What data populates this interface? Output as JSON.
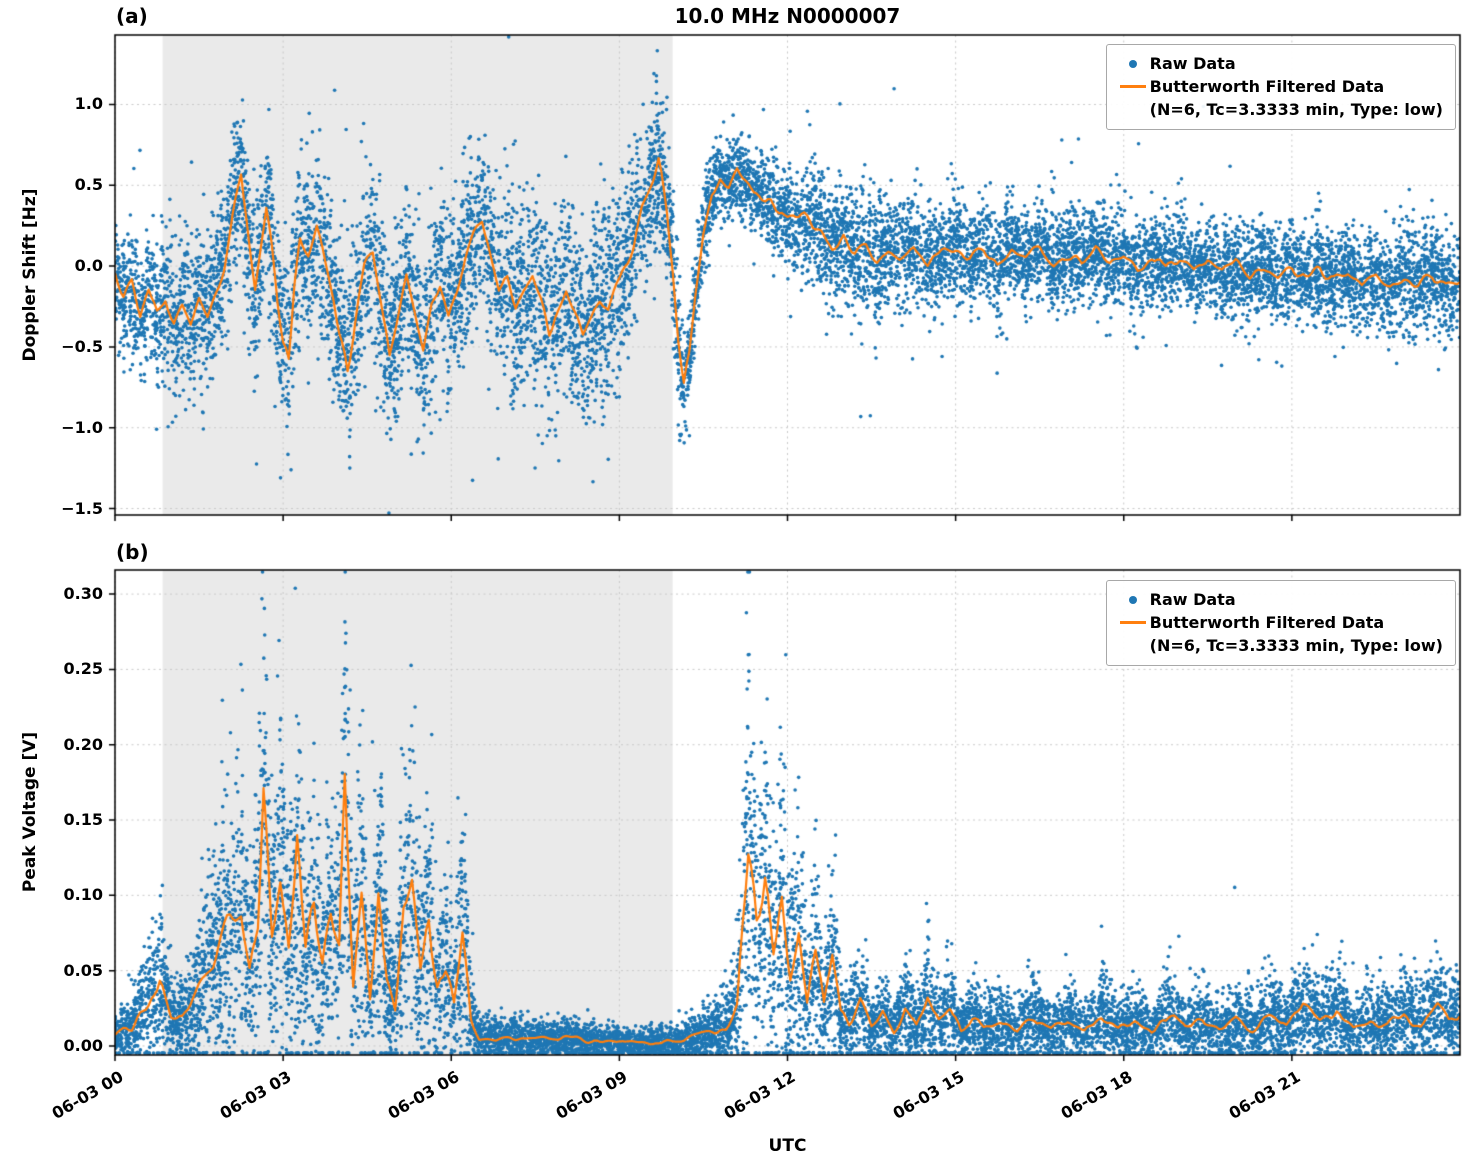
{
  "figure": {
    "title": "10.0 MHz N0000007",
    "xlabel": "UTC",
    "panels": [
      {
        "tag": "(a)",
        "ylabel": "Doppler Shift [Hz]"
      },
      {
        "tag": "(b)",
        "ylabel": "Peak Voltage [V]"
      }
    ],
    "legend": {
      "raw_label": "Raw Data",
      "filtered_label": "Butterworth Filtered Data",
      "filtered_sublabel": "(N=6, Tc=3.3333 min, Type: low)"
    },
    "colors": {
      "raw": "#1f77b4",
      "filtered": "#ff7f0e",
      "shade": "#d9d9d9",
      "grid": "#c9c9c9",
      "axis": "#000000"
    }
  },
  "chart_data": [
    {
      "type": "scatter",
      "title": "10.0 MHz N0000007",
      "ylabel": "Doppler Shift [Hz]",
      "xlabel": "UTC",
      "xlim": [
        0,
        24
      ],
      "ylim": [
        -1.54,
        1.43
      ],
      "yticks": [
        -1.5,
        -1.0,
        -0.5,
        0.0,
        0.5,
        1.0
      ],
      "ytick_labels": [
        "−1.5",
        "−1.0",
        "−0.5",
        "0.0",
        "0.5",
        "1.0"
      ],
      "xticks": [
        0,
        3,
        6,
        9,
        12,
        15,
        18,
        21
      ],
      "xtick_labels": [
        "06-03 00",
        "06-03 03",
        "06-03 06",
        "06-03 09",
        "06-03 12",
        "06-03 15",
        "06-03 18",
        "06-03 21"
      ],
      "shaded_span": [
        0.85,
        9.95
      ],
      "legend": [
        "Raw Data",
        "Butterworth Filtered Data (N=6, Tc=3.3333 min, Type: low)"
      ],
      "seed": 20230603,
      "points_per_hour": 500,
      "outlier_prob": 0.03,
      "outlier_scale": 2.2,
      "jitter_base": 0.05,
      "jitter_factor": 0.05,
      "spread_base": 0,
      "spread_factor": 0,
      "scatter_spread": [
        [
          0,
          0.18
        ],
        [
          1,
          0.22
        ],
        [
          2,
          0.24
        ],
        [
          3,
          0.27
        ],
        [
          4,
          0.28
        ],
        [
          5,
          0.28
        ],
        [
          6,
          0.27
        ],
        [
          7,
          0.3
        ],
        [
          8,
          0.3
        ],
        [
          9,
          0.3
        ],
        [
          9.8,
          0.22
        ],
        [
          10.3,
          0.14
        ],
        [
          11,
          0.12
        ],
        [
          11.8,
          0.14
        ],
        [
          12.5,
          0.17
        ],
        [
          13.5,
          0.2
        ],
        [
          14.5,
          0.16
        ],
        [
          16,
          0.15
        ],
        [
          18,
          0.15
        ],
        [
          20,
          0.14
        ],
        [
          22,
          0.15
        ],
        [
          24,
          0.16
        ]
      ],
      "filtered_line": [
        [
          0.0,
          -0.05
        ],
        [
          0.15,
          -0.2
        ],
        [
          0.3,
          -0.1
        ],
        [
          0.45,
          -0.3
        ],
        [
          0.6,
          -0.15
        ],
        [
          0.75,
          -0.3
        ],
        [
          0.9,
          -0.2
        ],
        [
          1.05,
          -0.35
        ],
        [
          1.2,
          -0.25
        ],
        [
          1.35,
          -0.35
        ],
        [
          1.5,
          -0.2
        ],
        [
          1.65,
          -0.3
        ],
        [
          1.8,
          -0.15
        ],
        [
          1.95,
          0.0
        ],
        [
          2.1,
          0.3
        ],
        [
          2.25,
          0.58
        ],
        [
          2.4,
          0.1
        ],
        [
          2.5,
          -0.15
        ],
        [
          2.6,
          0.1
        ],
        [
          2.7,
          0.35
        ],
        [
          2.8,
          0.1
        ],
        [
          2.9,
          -0.2
        ],
        [
          3.0,
          -0.45
        ],
        [
          3.1,
          -0.55
        ],
        [
          3.2,
          -0.1
        ],
        [
          3.3,
          0.2
        ],
        [
          3.45,
          0.1
        ],
        [
          3.6,
          0.25
        ],
        [
          3.75,
          0.0
        ],
        [
          3.9,
          -0.2
        ],
        [
          4.0,
          -0.4
        ],
        [
          4.15,
          -0.62
        ],
        [
          4.3,
          -0.3
        ],
        [
          4.45,
          0.0
        ],
        [
          4.6,
          0.1
        ],
        [
          4.75,
          -0.2
        ],
        [
          4.9,
          -0.55
        ],
        [
          5.05,
          -0.3
        ],
        [
          5.2,
          -0.05
        ],
        [
          5.35,
          -0.3
        ],
        [
          5.5,
          -0.55
        ],
        [
          5.65,
          -0.25
        ],
        [
          5.8,
          -0.1
        ],
        [
          5.95,
          -0.3
        ],
        [
          6.1,
          -0.15
        ],
        [
          6.25,
          0.05
        ],
        [
          6.4,
          0.2
        ],
        [
          6.55,
          0.3
        ],
        [
          6.7,
          0.05
        ],
        [
          6.85,
          -0.15
        ],
        [
          7.0,
          -0.1
        ],
        [
          7.15,
          -0.25
        ],
        [
          7.3,
          -0.15
        ],
        [
          7.45,
          -0.05
        ],
        [
          7.6,
          -0.2
        ],
        [
          7.75,
          -0.4
        ],
        [
          7.9,
          -0.3
        ],
        [
          8.05,
          -0.15
        ],
        [
          8.2,
          -0.3
        ],
        [
          8.35,
          -0.45
        ],
        [
          8.5,
          -0.35
        ],
        [
          8.65,
          -0.2
        ],
        [
          8.8,
          -0.25
        ],
        [
          8.95,
          -0.1
        ],
        [
          9.1,
          0.0
        ],
        [
          9.25,
          0.1
        ],
        [
          9.4,
          0.35
        ],
        [
          9.55,
          0.5
        ],
        [
          9.7,
          0.65
        ],
        [
          9.85,
          0.35
        ],
        [
          9.95,
          0.0
        ],
        [
          10.05,
          -0.45
        ],
        [
          10.15,
          -0.75
        ],
        [
          10.25,
          -0.55
        ],
        [
          10.35,
          -0.2
        ],
        [
          10.5,
          0.2
        ],
        [
          10.65,
          0.45
        ],
        [
          10.8,
          0.55
        ],
        [
          10.95,
          0.5
        ],
        [
          11.1,
          0.6
        ],
        [
          11.25,
          0.52
        ],
        [
          11.4,
          0.45
        ],
        [
          11.55,
          0.42
        ],
        [
          11.7,
          0.38
        ],
        [
          11.85,
          0.32
        ],
        [
          12.0,
          0.3
        ],
        [
          12.2,
          0.28
        ],
        [
          12.4,
          0.3
        ],
        [
          12.6,
          0.22
        ],
        [
          12.8,
          0.12
        ],
        [
          13.0,
          0.18
        ],
        [
          13.2,
          0.08
        ],
        [
          13.4,
          0.12
        ],
        [
          13.6,
          0.04
        ],
        [
          13.8,
          0.1
        ],
        [
          14.0,
          0.06
        ],
        [
          14.25,
          0.12
        ],
        [
          14.5,
          0.02
        ],
        [
          14.75,
          0.08
        ],
        [
          15.0,
          0.12
        ],
        [
          15.25,
          0.04
        ],
        [
          15.5,
          0.1
        ],
        [
          15.75,
          0.0
        ],
        [
          16.0,
          0.1
        ],
        [
          16.25,
          0.05
        ],
        [
          16.5,
          0.12
        ],
        [
          16.75,
          0.02
        ],
        [
          17.0,
          0.08
        ],
        [
          17.25,
          0.03
        ],
        [
          17.5,
          0.1
        ],
        [
          17.75,
          0.02
        ],
        [
          18.0,
          0.07
        ],
        [
          18.25,
          -0.02
        ],
        [
          18.5,
          0.05
        ],
        [
          18.75,
          0.0
        ],
        [
          19.0,
          0.06
        ],
        [
          19.25,
          -0.03
        ],
        [
          19.5,
          0.03
        ],
        [
          19.75,
          -0.05
        ],
        [
          20.0,
          0.02
        ],
        [
          20.25,
          -0.06
        ],
        [
          20.5,
          0.0
        ],
        [
          20.75,
          -0.08
        ],
        [
          21.0,
          -0.02
        ],
        [
          21.25,
          -0.06
        ],
        [
          21.5,
          0.0
        ],
        [
          21.75,
          -0.1
        ],
        [
          22.0,
          -0.04
        ],
        [
          22.25,
          -0.12
        ],
        [
          22.5,
          -0.06
        ],
        [
          22.75,
          -0.14
        ],
        [
          23.0,
          -0.08
        ],
        [
          23.25,
          -0.12
        ],
        [
          23.5,
          -0.06
        ],
        [
          23.75,
          -0.12
        ],
        [
          24.0,
          -0.1
        ]
      ]
    },
    {
      "type": "scatter",
      "title": "10.0 MHz N0000007",
      "ylabel": "Peak Voltage [V]",
      "xlabel": "UTC",
      "xlim": [
        0,
        24
      ],
      "ylim": [
        -0.006,
        0.316
      ],
      "yticks": [
        0.0,
        0.05,
        0.1,
        0.15,
        0.2,
        0.25,
        0.3
      ],
      "ytick_labels": [
        "0.00",
        "0.05",
        "0.10",
        "0.15",
        "0.20",
        "0.25",
        "0.30"
      ],
      "xticks": [
        0,
        3,
        6,
        9,
        12,
        15,
        18,
        21
      ],
      "xtick_labels": [
        "06-03 00",
        "06-03 03",
        "06-03 06",
        "06-03 09",
        "06-03 12",
        "06-03 15",
        "06-03 18",
        "06-03 21"
      ],
      "shaded_span": [
        0.85,
        9.95
      ],
      "legend": [
        "Raw Data",
        "Butterworth Filtered Data (N=6, Tc=3.3333 min, Type: low)"
      ],
      "seed": 99202,
      "points_per_hour": 500,
      "outlier_prob": 0.03,
      "outlier_scale": 2.0,
      "jitter_base": 0.002,
      "jitter_factor": 0.2,
      "spread_base": 0.004,
      "spread_factor": 0.55,
      "scatter_spread": [],
      "filtered_line": [
        [
          0.0,
          0.008
        ],
        [
          0.3,
          0.012
        ],
        [
          0.6,
          0.03
        ],
        [
          0.8,
          0.045
        ],
        [
          1.0,
          0.02
        ],
        [
          1.2,
          0.018
        ],
        [
          1.45,
          0.035
        ],
        [
          1.7,
          0.055
        ],
        [
          1.9,
          0.065
        ],
        [
          2.1,
          0.08
        ],
        [
          2.25,
          0.09
        ],
        [
          2.4,
          0.05
        ],
        [
          2.55,
          0.08
        ],
        [
          2.65,
          0.16
        ],
        [
          2.8,
          0.07
        ],
        [
          2.95,
          0.11
        ],
        [
          3.1,
          0.06
        ],
        [
          3.25,
          0.13
        ],
        [
          3.4,
          0.06
        ],
        [
          3.55,
          0.09
        ],
        [
          3.7,
          0.05
        ],
        [
          3.85,
          0.08
        ],
        [
          4.0,
          0.06
        ],
        [
          4.1,
          0.17
        ],
        [
          4.25,
          0.04
        ],
        [
          4.4,
          0.1
        ],
        [
          4.55,
          0.03
        ],
        [
          4.7,
          0.1
        ],
        [
          4.85,
          0.05
        ],
        [
          5.0,
          0.025
        ],
        [
          5.15,
          0.09
        ],
        [
          5.3,
          0.1
        ],
        [
          5.45,
          0.05
        ],
        [
          5.6,
          0.08
        ],
        [
          5.75,
          0.04
        ],
        [
          5.9,
          0.055
        ],
        [
          6.05,
          0.03
        ],
        [
          6.2,
          0.085
        ],
        [
          6.35,
          0.02
        ],
        [
          6.5,
          0.006
        ],
        [
          6.8,
          0.004
        ],
        [
          7.2,
          0.005
        ],
        [
          7.6,
          0.004
        ],
        [
          8.0,
          0.005
        ],
        [
          8.4,
          0.004
        ],
        [
          8.8,
          0.003
        ],
        [
          9.2,
          0.002
        ],
        [
          9.6,
          0.002
        ],
        [
          10.0,
          0.003
        ],
        [
          10.3,
          0.005
        ],
        [
          10.6,
          0.008
        ],
        [
          10.9,
          0.012
        ],
        [
          11.1,
          0.025
        ],
        [
          11.3,
          0.13
        ],
        [
          11.45,
          0.08
        ],
        [
          11.6,
          0.105
        ],
        [
          11.75,
          0.06
        ],
        [
          11.9,
          0.09
        ],
        [
          12.05,
          0.05
        ],
        [
          12.2,
          0.08
        ],
        [
          12.35,
          0.03
        ],
        [
          12.5,
          0.065
        ],
        [
          12.65,
          0.025
        ],
        [
          12.8,
          0.06
        ],
        [
          12.95,
          0.02
        ],
        [
          13.1,
          0.015
        ],
        [
          13.3,
          0.03
        ],
        [
          13.5,
          0.012
        ],
        [
          13.7,
          0.022
        ],
        [
          13.9,
          0.01
        ],
        [
          14.1,
          0.025
        ],
        [
          14.3,
          0.012
        ],
        [
          14.5,
          0.03
        ],
        [
          14.7,
          0.015
        ],
        [
          14.9,
          0.025
        ],
        [
          15.1,
          0.01
        ],
        [
          15.3,
          0.02
        ],
        [
          15.5,
          0.012
        ],
        [
          15.8,
          0.016
        ],
        [
          16.1,
          0.01
        ],
        [
          16.4,
          0.02
        ],
        [
          16.7,
          0.01
        ],
        [
          17.0,
          0.016
        ],
        [
          17.3,
          0.01
        ],
        [
          17.6,
          0.02
        ],
        [
          17.9,
          0.012
        ],
        [
          18.2,
          0.016
        ],
        [
          18.5,
          0.01
        ],
        [
          18.8,
          0.02
        ],
        [
          19.1,
          0.012
        ],
        [
          19.4,
          0.018
        ],
        [
          19.7,
          0.01
        ],
        [
          20.0,
          0.016
        ],
        [
          20.3,
          0.012
        ],
        [
          20.6,
          0.02
        ],
        [
          20.9,
          0.012
        ],
        [
          21.2,
          0.026
        ],
        [
          21.5,
          0.016
        ],
        [
          21.8,
          0.022
        ],
        [
          22.1,
          0.012
        ],
        [
          22.4,
          0.018
        ],
        [
          22.7,
          0.014
        ],
        [
          23.0,
          0.02
        ],
        [
          23.3,
          0.016
        ],
        [
          23.6,
          0.026
        ],
        [
          23.8,
          0.016
        ],
        [
          24.0,
          0.022
        ]
      ]
    }
  ]
}
